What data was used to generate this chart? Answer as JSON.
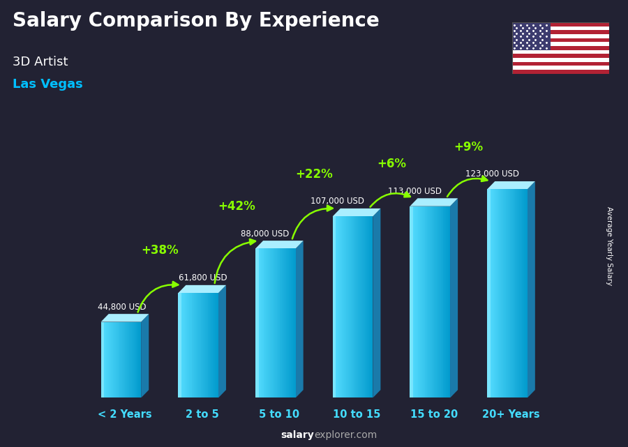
{
  "title": "Salary Comparison By Experience",
  "subtitle1": "3D Artist",
  "subtitle2": "Las Vegas",
  "categories": [
    "< 2 Years",
    "2 to 5",
    "5 to 10",
    "10 to 15",
    "15 to 20",
    "20+ Years"
  ],
  "values": [
    44800,
    61800,
    88000,
    107000,
    113000,
    123000
  ],
  "labels": [
    "44,800 USD",
    "61,800 USD",
    "88,000 USD",
    "107,000 USD",
    "113,000 USD",
    "123,000 USD"
  ],
  "pct_changes": [
    "+38%",
    "+42%",
    "+22%",
    "+6%",
    "+9%"
  ],
  "bar_color_front_left": "#4DD8FF",
  "bar_color_front_right": "#0099CC",
  "bar_color_side": "#006699",
  "bar_color_top": "#99EEFF",
  "ylabel": "Average Yearly Salary",
  "footer": "salaryexplorer.com",
  "bg_color": "#1a1a2e",
  "title_color": "#ffffff",
  "subtitle1_color": "#ffffff",
  "subtitle2_color": "#00BFFF",
  "label_color": "#ffffff",
  "pct_color": "#88FF00",
  "cat_color": "#44DDFF",
  "footer_bold": "salary",
  "footer_normal": "explorer.com"
}
